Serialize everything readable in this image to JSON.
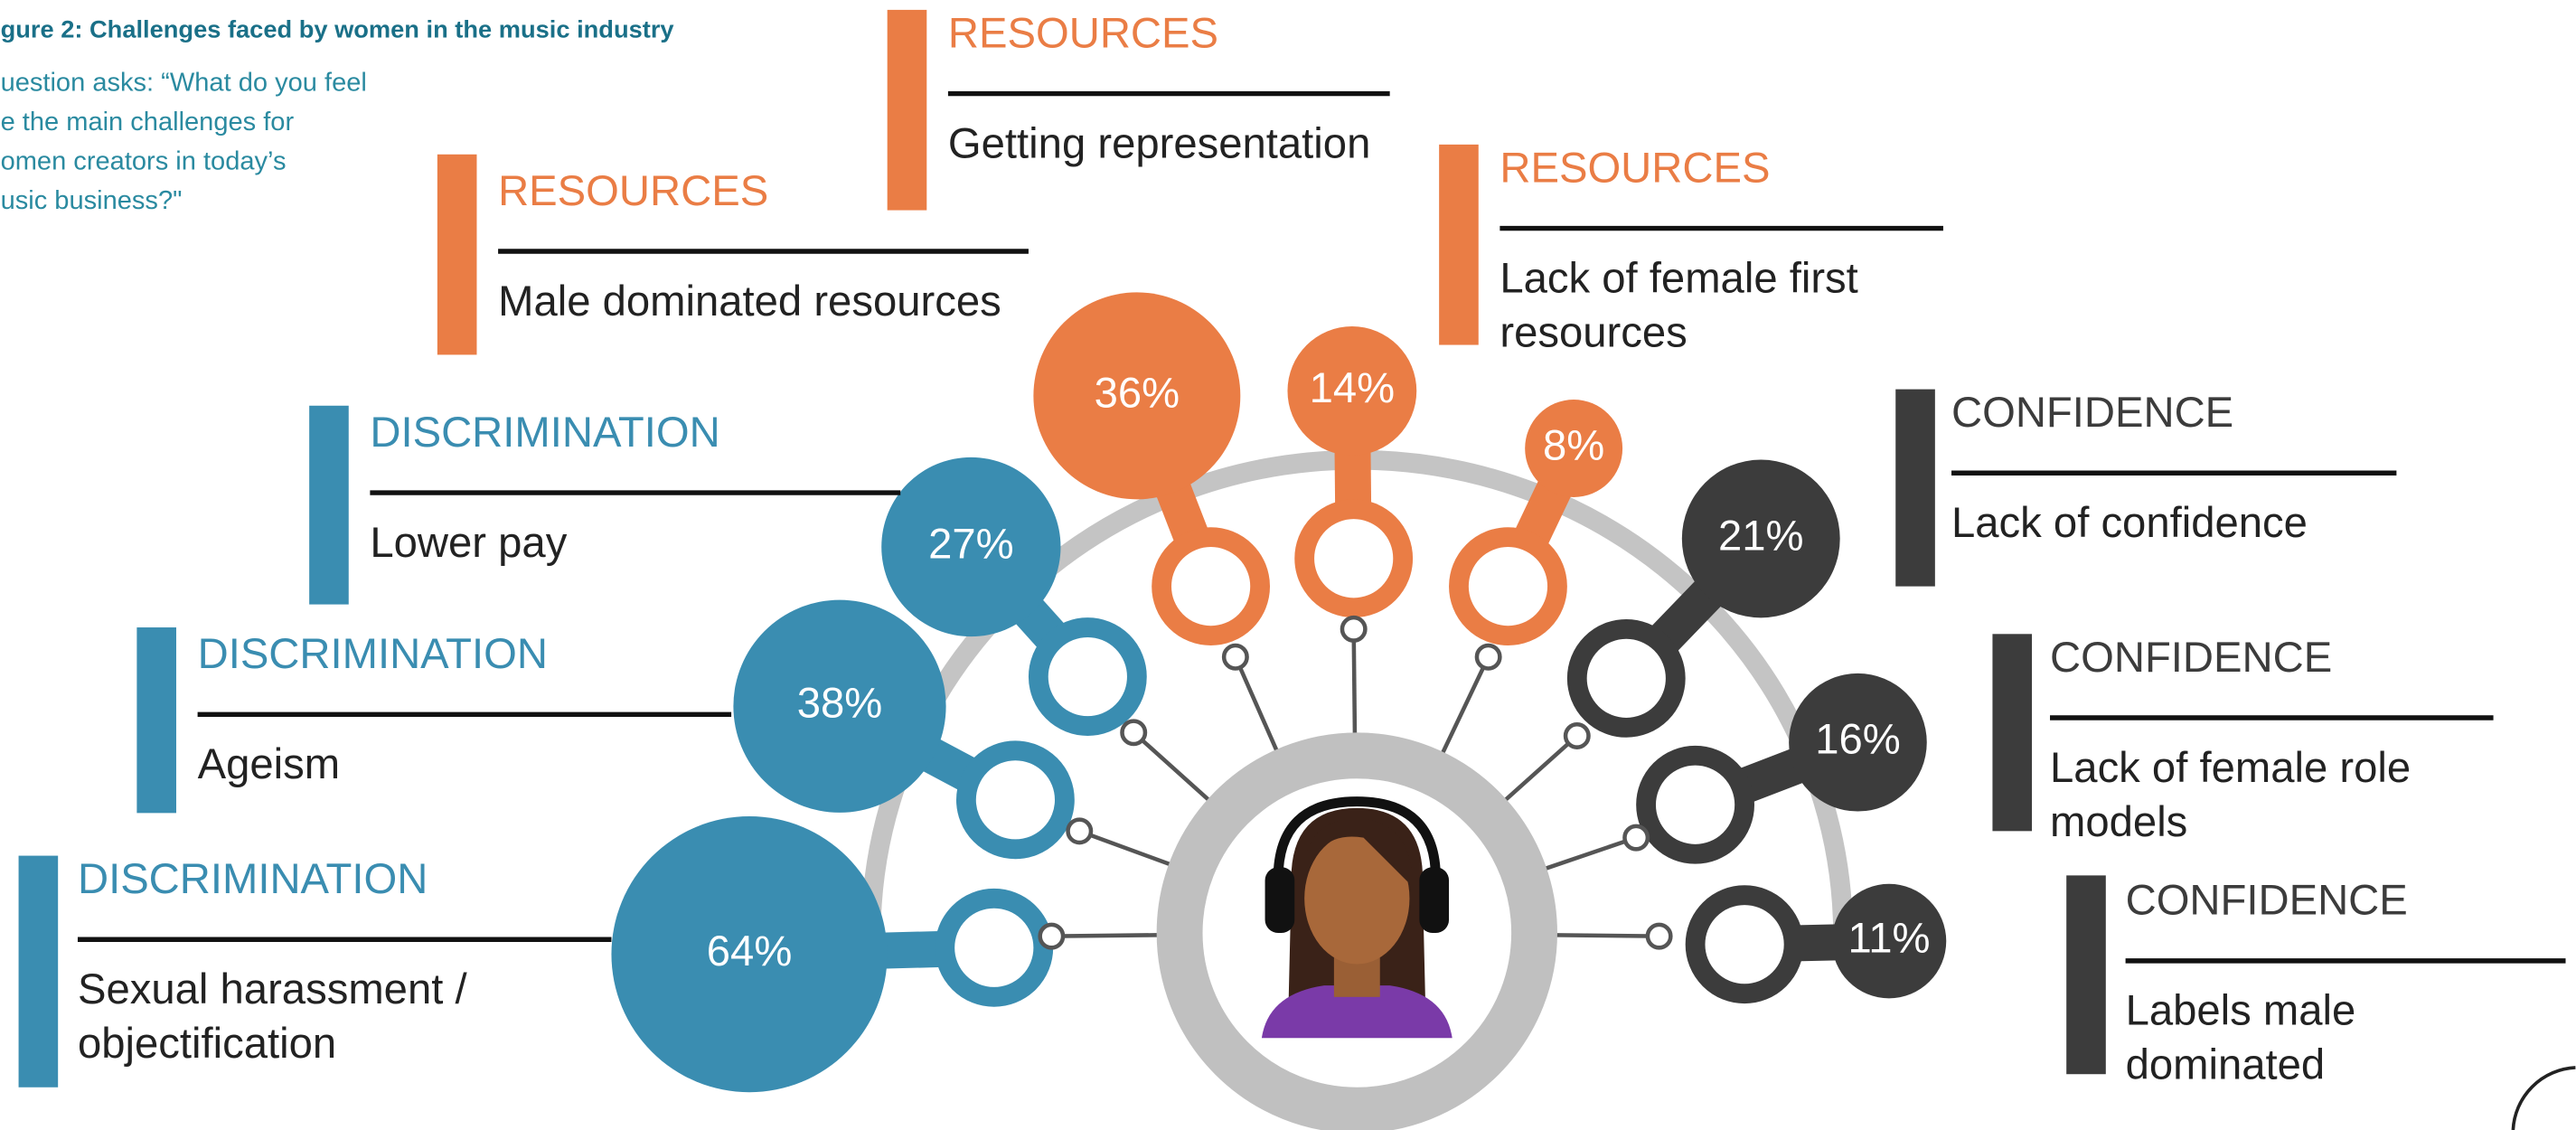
{
  "header": {
    "title": "gure 2: Challenges faced by women in the music industry",
    "question": [
      "uestion asks: “What do you feel",
      "e the main challenges for",
      "omen creators in today’s",
      "usic business?\""
    ]
  },
  "challenges": [
    {
      "category": "RESOURCES",
      "label": "Male dominated resources",
      "value": 36,
      "value_label": "36%",
      "color": "#ea7d45"
    },
    {
      "category": "RESOURCES",
      "label": "Getting representation",
      "value": 14,
      "value_label": "14%",
      "color": "#ea7d45"
    },
    {
      "category": "RESOURCES",
      "label": "Lack of female first resources",
      "value": 8,
      "value_label": "8%",
      "color": "#ea7d45"
    },
    {
      "category": "DISCRIMINATION",
      "label": "Lower pay",
      "value": 27,
      "value_label": "27%",
      "color": "#3a8db1"
    },
    {
      "category": "DISCRIMINATION",
      "label": "Ageism",
      "value": 38,
      "value_label": "38%",
      "color": "#3a8db1"
    },
    {
      "category": "DISCRIMINATION",
      "label": "Sexual harassment / objectification",
      "value": 64,
      "value_label": "64%",
      "color": "#3a8db1"
    },
    {
      "category": "CONFIDENCE",
      "label": "Lack of confidence",
      "value": 21,
      "value_label": "21%",
      "color": "#3c3c3c"
    },
    {
      "category": "CONFIDENCE",
      "label": "Lack of female role models",
      "value": 16,
      "value_label": "16%",
      "color": "#3c3c3c"
    },
    {
      "category": "CONFIDENCE",
      "label": "Labels male dominated",
      "value": 11,
      "value_label": "11%",
      "color": "#3c3c3c"
    }
  ]
}
